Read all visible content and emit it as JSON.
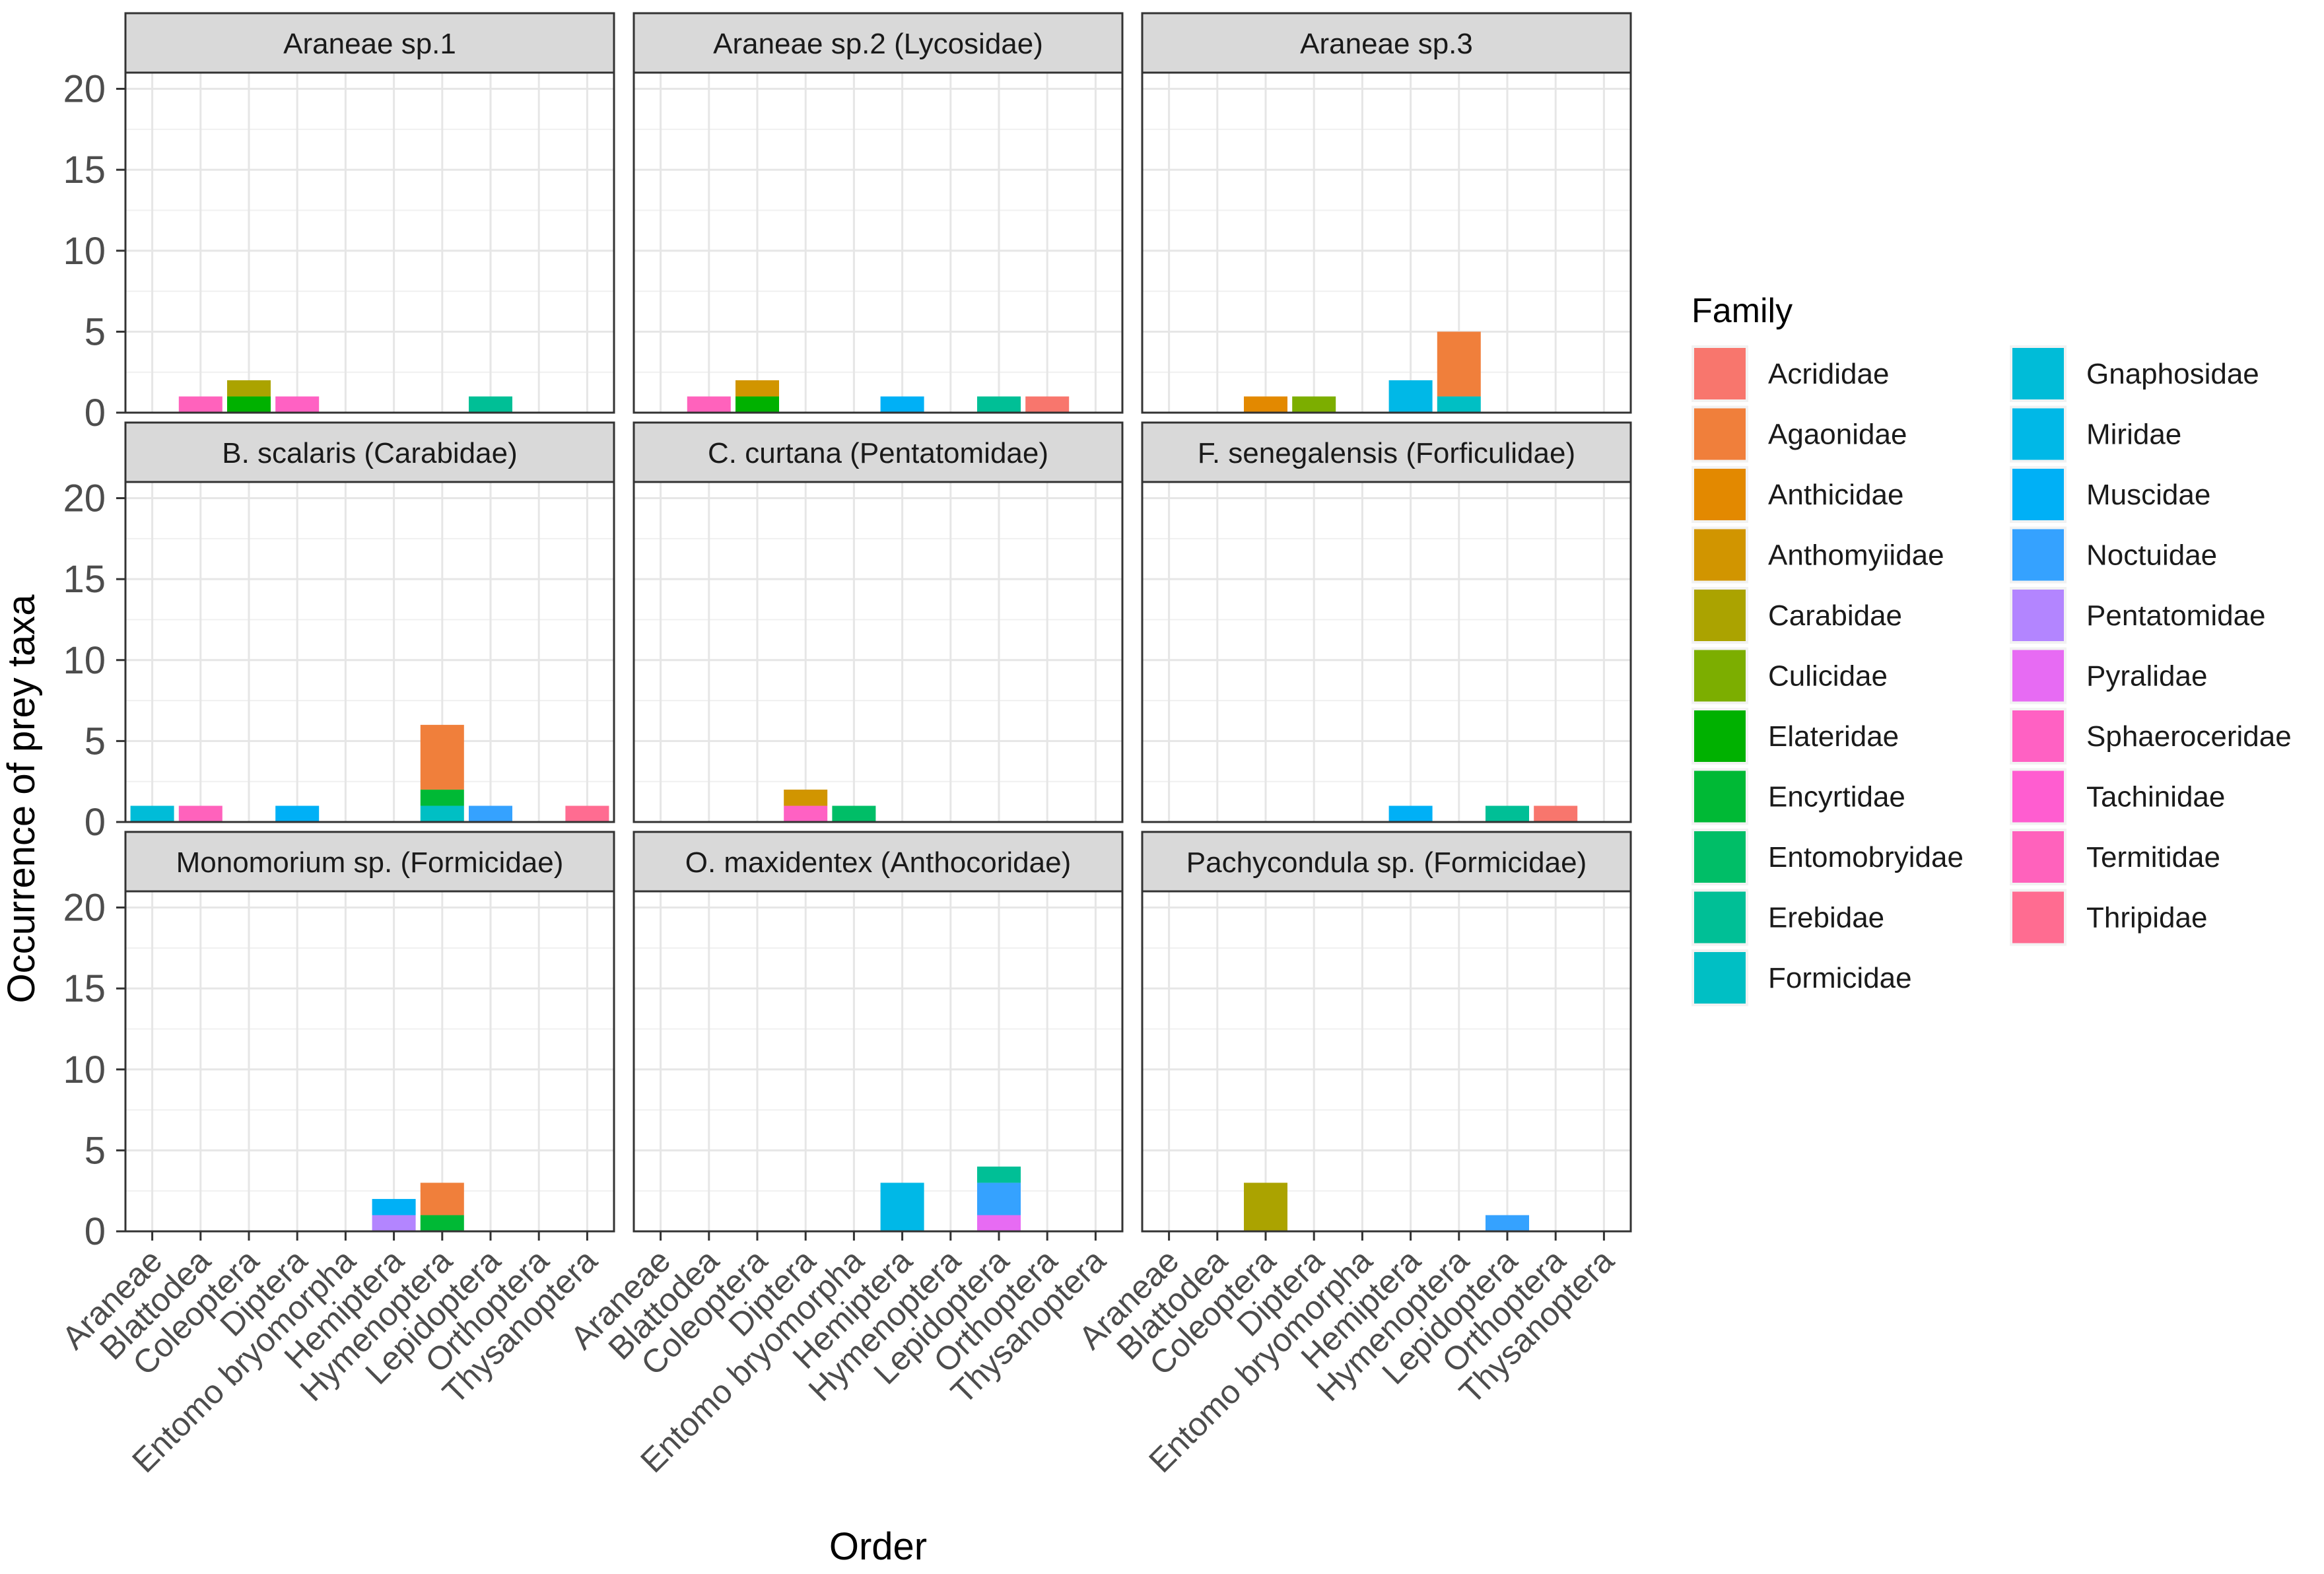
{
  "chart_data": {
    "type": "bar",
    "stacked": true,
    "faceted": true,
    "xlabel": "Order",
    "ylabel": "Occurrence of prey taxa",
    "ylim": [
      0,
      21
    ],
    "yticks": [
      0,
      5,
      10,
      15,
      20
    ],
    "categories": [
      "Araneae",
      "Blattodea",
      "Coleoptera",
      "Diptera",
      "Entomobryomorpha",
      "Hemiptera",
      "Hymenoptera",
      "Lepidoptera",
      "Orthoptera",
      "Thysanoptera"
    ],
    "x_tick_labels": [
      "Araneae",
      "Blattodea",
      "Coleoptera",
      "Diptera",
      "Entomo bryomorpha",
      "Hemiptera",
      "Hymenoptera",
      "Lepidoptera",
      "Orthoptera",
      "Thysanoptera"
    ],
    "legend": {
      "title": "Family",
      "position": "right",
      "entries": [
        {
          "name": "Acrididae",
          "color": "#F8766D"
        },
        {
          "name": "Agaonidae",
          "color": "#F07F3B"
        },
        {
          "name": "Anthicidae",
          "color": "#E38900"
        },
        {
          "name": "Anthomyiidae",
          "color": "#D19500"
        },
        {
          "name": "Carabidae",
          "color": "#ABA300"
        },
        {
          "name": "Culicidae",
          "color": "#7CAE00"
        },
        {
          "name": "Elateridae",
          "color": "#00B100"
        },
        {
          "name": "Encyrtidae",
          "color": "#00B935"
        },
        {
          "name": "Entomobryidae",
          "color": "#00BE67"
        },
        {
          "name": "Erebidae",
          "color": "#00BF96"
        },
        {
          "name": "Formicidae",
          "color": "#00BFC4"
        },
        {
          "name": "Gnaphosidae",
          "color": "#00BCD8"
        },
        {
          "name": "Miridae",
          "color": "#00B8E7"
        },
        {
          "name": "Muscidae",
          "color": "#00B0F6"
        },
        {
          "name": "Noctuidae",
          "color": "#35A2FF"
        },
        {
          "name": "Pentatomidae",
          "color": "#B385FF"
        },
        {
          "name": "Pyralidae",
          "color": "#E76BF3"
        },
        {
          "name": "Sphaeroceridae",
          "color": "#FF61C3"
        },
        {
          "name": "Tachinidae",
          "color": "#FF5DD0"
        },
        {
          "name": "Termitidae",
          "color": "#FF62BC"
        },
        {
          "name": "Thripidae",
          "color": "#FF6C91"
        }
      ]
    },
    "facets": [
      {
        "title": "Araneae sp.1",
        "bars": [
          {
            "category": "Blattodea",
            "segments": [
              {
                "family": "Termitidae",
                "value": 1
              }
            ]
          },
          {
            "category": "Coleoptera",
            "segments": [
              {
                "family": "Elateridae",
                "value": 1
              },
              {
                "family": "Carabidae",
                "value": 1
              }
            ]
          },
          {
            "category": "Diptera",
            "segments": [
              {
                "family": "Sphaeroceridae",
                "value": 1
              }
            ]
          },
          {
            "category": "Lepidoptera",
            "segments": [
              {
                "family": "Erebidae",
                "value": 1
              }
            ]
          }
        ]
      },
      {
        "title": "Araneae sp.2 (Lycosidae)",
        "bars": [
          {
            "category": "Blattodea",
            "segments": [
              {
                "family": "Termitidae",
                "value": 1
              }
            ]
          },
          {
            "category": "Coleoptera",
            "segments": [
              {
                "family": "Elateridae",
                "value": 1
              },
              {
                "family": "Anthomyiidae",
                "value": 1
              }
            ]
          },
          {
            "category": "Hemiptera",
            "segments": [
              {
                "family": "Muscidae",
                "value": 1
              }
            ]
          },
          {
            "category": "Lepidoptera",
            "segments": [
              {
                "family": "Erebidae",
                "value": 1
              }
            ]
          },
          {
            "category": "Orthoptera",
            "segments": [
              {
                "family": "Acrididae",
                "value": 1
              }
            ]
          }
        ]
      },
      {
        "title": "Araneae sp.3",
        "bars": [
          {
            "category": "Coleoptera",
            "segments": [
              {
                "family": "Anthicidae",
                "value": 1
              }
            ]
          },
          {
            "category": "Diptera",
            "segments": [
              {
                "family": "Culicidae",
                "value": 1
              }
            ]
          },
          {
            "category": "Hemiptera",
            "segments": [
              {
                "family": "Miridae",
                "value": 2
              }
            ]
          },
          {
            "category": "Hymenoptera",
            "segments": [
              {
                "family": "Formicidae",
                "value": 1
              },
              {
                "family": "Agaonidae",
                "value": 4
              }
            ]
          }
        ]
      },
      {
        "title": "B. scalaris (Carabidae)",
        "bars": [
          {
            "category": "Araneae",
            "segments": [
              {
                "family": "Gnaphosidae",
                "value": 1
              }
            ]
          },
          {
            "category": "Blattodea",
            "segments": [
              {
                "family": "Termitidae",
                "value": 1
              }
            ]
          },
          {
            "category": "Diptera",
            "segments": [
              {
                "family": "Muscidae",
                "value": 1
              }
            ]
          },
          {
            "category": "Hymenoptera",
            "segments": [
              {
                "family": "Formicidae",
                "value": 1
              },
              {
                "family": "Encyrtidae",
                "value": 1
              },
              {
                "family": "Agaonidae",
                "value": 4
              }
            ]
          },
          {
            "category": "Lepidoptera",
            "segments": [
              {
                "family": "Noctuidae",
                "value": 1
              }
            ]
          },
          {
            "category": "Thysanoptera",
            "segments": [
              {
                "family": "Thripidae",
                "value": 1
              }
            ]
          }
        ]
      },
      {
        "title": "C. curtana (Pentatomidae)",
        "bars": [
          {
            "category": "Diptera",
            "segments": [
              {
                "family": "Sphaeroceridae",
                "value": 1
              },
              {
                "family": "Anthomyiidae",
                "value": 1
              }
            ]
          },
          {
            "category": "Entomobryomorpha",
            "segments": [
              {
                "family": "Entomobryidae",
                "value": 1
              }
            ]
          }
        ]
      },
      {
        "title": "F. senegalensis (Forficulidae)",
        "bars": [
          {
            "category": "Hemiptera",
            "segments": [
              {
                "family": "Muscidae",
                "value": 1
              }
            ]
          },
          {
            "category": "Lepidoptera",
            "segments": [
              {
                "family": "Erebidae",
                "value": 1
              }
            ]
          },
          {
            "category": "Orthoptera",
            "segments": [
              {
                "family": "Acrididae",
                "value": 1
              }
            ]
          }
        ]
      },
      {
        "title": "Monomorium sp. (Formicidae)",
        "bars": [
          {
            "category": "Hemiptera",
            "segments": [
              {
                "family": "Pentatomidae",
                "value": 1
              },
              {
                "family": "Muscidae",
                "value": 1
              }
            ]
          },
          {
            "category": "Hymenoptera",
            "segments": [
              {
                "family": "Encyrtidae",
                "value": 1
              },
              {
                "family": "Agaonidae",
                "value": 2
              }
            ]
          }
        ]
      },
      {
        "title": "O. maxidentex (Anthocoridae)",
        "bars": [
          {
            "category": "Hemiptera",
            "segments": [
              {
                "family": "Miridae",
                "value": 3
              }
            ]
          },
          {
            "category": "Lepidoptera",
            "segments": [
              {
                "family": "Pyralidae",
                "value": 1
              },
              {
                "family": "Noctuidae",
                "value": 2
              },
              {
                "family": "Erebidae",
                "value": 1
              }
            ]
          }
        ]
      },
      {
        "title": "Pachycondula sp. (Formicidae)",
        "bars": [
          {
            "category": "Coleoptera",
            "segments": [
              {
                "family": "Carabidae",
                "value": 3
              }
            ]
          },
          {
            "category": "Lepidoptera",
            "segments": [
              {
                "family": "Noctuidae",
                "value": 1
              }
            ]
          }
        ]
      }
    ]
  }
}
